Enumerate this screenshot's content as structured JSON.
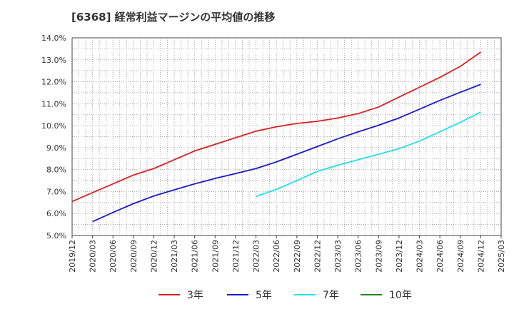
{
  "chart_data": {
    "type": "line",
    "title": "[6368]  経常利益マージンの平均値の推移",
    "xlabel": "",
    "ylabel": "",
    "ylim": [
      5.0,
      14.0
    ],
    "y_ticks": [
      5.0,
      6.0,
      7.0,
      8.0,
      9.0,
      10.0,
      11.0,
      12.0,
      13.0,
      14.0
    ],
    "y_tick_labels": [
      "5.0%",
      "6.0%",
      "7.0%",
      "8.0%",
      "9.0%",
      "10.0%",
      "11.0%",
      "12.0%",
      "13.0%",
      "14.0%"
    ],
    "x_tick_labels": [
      "2019/12",
      "2020/03",
      "2020/06",
      "2020/09",
      "2020/12",
      "2021/03",
      "2021/06",
      "2021/09",
      "2021/12",
      "2022/03",
      "2022/06",
      "2022/09",
      "2022/12",
      "2023/03",
      "2023/06",
      "2023/09",
      "2023/12",
      "2024/03",
      "2024/06",
      "2024/09",
      "2024/12",
      "2025/03"
    ],
    "grid": true,
    "legend_position": "bottom",
    "series": [
      {
        "name": "3年",
        "color": "#dd2020",
        "x": [
          "2019/12",
          "2020/03",
          "2020/06",
          "2020/09",
          "2020/12",
          "2021/03",
          "2021/06",
          "2021/09",
          "2021/12",
          "2022/03",
          "2022/06",
          "2022/09",
          "2022/12",
          "2023/03",
          "2023/06",
          "2023/09",
          "2023/12",
          "2024/03",
          "2024/06",
          "2024/09",
          "2024/12"
        ],
        "values": [
          6.55,
          6.95,
          7.35,
          7.75,
          8.05,
          8.45,
          8.85,
          9.15,
          9.45,
          9.75,
          9.95,
          10.1,
          10.2,
          10.35,
          10.55,
          10.85,
          11.3,
          11.75,
          12.2,
          12.7,
          13.35
        ]
      },
      {
        "name": "5年",
        "color": "#1a1acc",
        "x": [
          "2020/03",
          "2020/06",
          "2020/09",
          "2020/12",
          "2021/03",
          "2021/06",
          "2021/09",
          "2021/12",
          "2022/03",
          "2022/06",
          "2022/09",
          "2022/12",
          "2023/03",
          "2023/06",
          "2023/09",
          "2023/12",
          "2024/03",
          "2024/06",
          "2024/09",
          "2024/12"
        ],
        "values": [
          5.63,
          6.05,
          6.45,
          6.8,
          7.08,
          7.35,
          7.6,
          7.82,
          8.05,
          8.35,
          8.7,
          9.05,
          9.4,
          9.72,
          10.02,
          10.35,
          10.75,
          11.15,
          11.52,
          11.88
        ]
      },
      {
        "name": "7年",
        "color": "#22e0e8",
        "x": [
          "2022/03",
          "2022/06",
          "2022/09",
          "2022/12",
          "2023/03",
          "2023/06",
          "2023/09",
          "2023/12",
          "2024/03",
          "2024/06",
          "2024/09",
          "2024/12"
        ],
        "values": [
          6.78,
          7.1,
          7.5,
          7.92,
          8.2,
          8.45,
          8.7,
          8.95,
          9.3,
          9.72,
          10.15,
          10.62
        ]
      },
      {
        "name": "10年",
        "color": "#228822",
        "x": [],
        "values": []
      }
    ]
  }
}
